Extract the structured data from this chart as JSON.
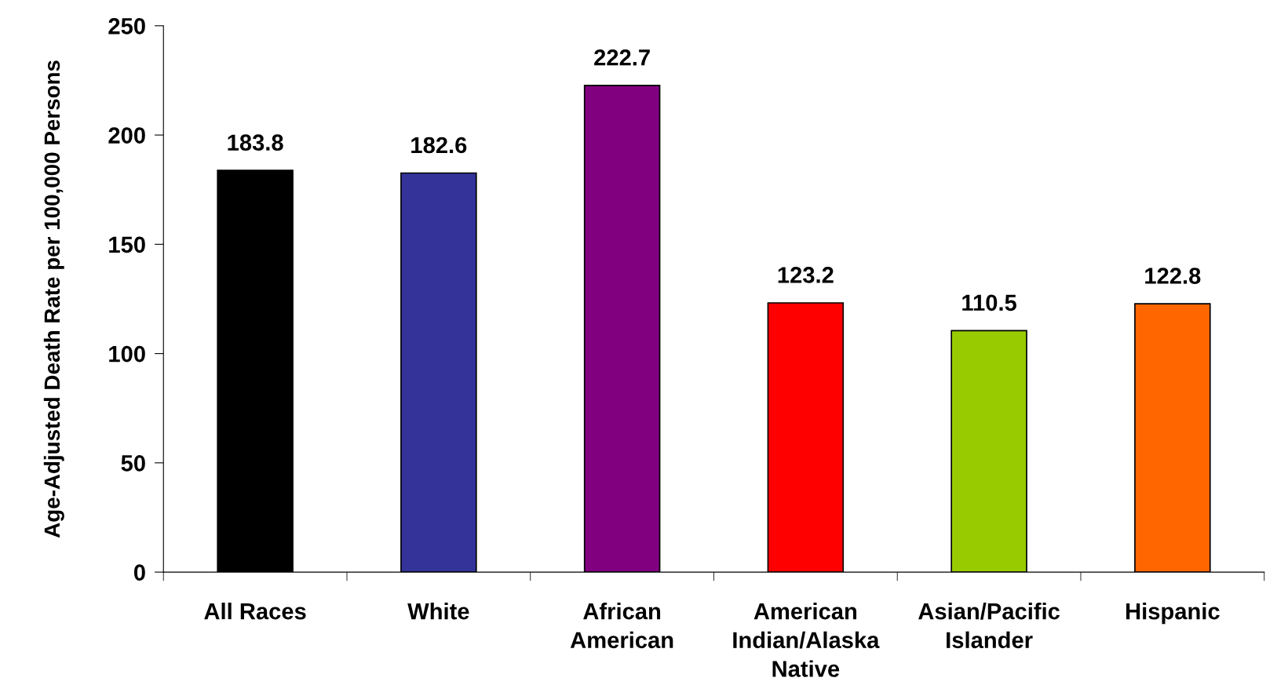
{
  "chart_data": {
    "type": "bar",
    "ylabel": "Age-Adjusted Death Rate per 100,000 Persons",
    "categories": [
      "All Races",
      "White",
      "African\nAmerican",
      "American\nIndian/Alaska\nNative",
      "Asian/Pacific\nIslander",
      "Hispanic"
    ],
    "values": [
      183.8,
      182.6,
      222.7,
      123.2,
      110.5,
      122.8
    ],
    "colors": [
      "#000000",
      "#333399",
      "#800080",
      "#ff0000",
      "#99cc00",
      "#ff6600"
    ],
    "ylim": [
      0,
      250
    ],
    "yticks": [
      0,
      50,
      100,
      150,
      200,
      250
    ],
    "data_labels": true,
    "grid": false
  }
}
